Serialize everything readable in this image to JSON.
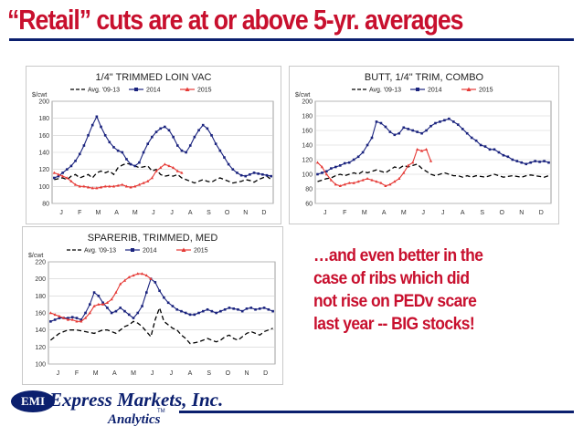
{
  "slide": {
    "title": "“Retail” cuts are at or above 5-yr. averages",
    "callout_lines": [
      "…and even better in the",
      "case of ribs which did",
      "not rise on PEDv scare",
      "last year --  BIG stocks!"
    ],
    "colors": {
      "title": "#c8102e",
      "rule": "#0b1f6e",
      "avg": "#000000",
      "s2014": "#1a237e",
      "s2015": "#e53935"
    }
  },
  "logo": {
    "badge": "EMI",
    "name": "Express Markets, Inc.",
    "sub": "Analytics",
    "tm": "TM"
  },
  "chart_data": [
    {
      "type": "line",
      "title": "1/4\" TRIMMED LOIN VAC",
      "ylabel": "$/cwt",
      "ylim": [
        80,
        200
      ],
      "yticks": [
        80,
        100,
        120,
        140,
        160,
        180,
        200
      ],
      "months": [
        "J",
        "F",
        "M",
        "A",
        "M",
        "J",
        "J",
        "A",
        "S",
        "O",
        "N",
        "D"
      ],
      "series": [
        {
          "name": "Avg. '09-13",
          "style": "dash",
          "values": [
            108,
            109,
            110,
            108,
            112,
            114,
            110,
            112,
            114,
            110,
            116,
            118,
            116,
            118,
            114,
            122,
            125,
            127,
            126,
            124,
            122,
            123,
            124,
            118,
            120,
            114,
            112,
            113,
            112,
            114,
            110,
            108,
            106,
            104,
            106,
            108,
            106,
            105,
            108,
            110,
            108,
            106,
            104,
            105,
            106,
            108,
            107,
            105,
            108,
            110,
            112,
            108
          ]
        },
        {
          "name": "2014",
          "style": "square",
          "values": [
            110,
            112,
            116,
            120,
            124,
            130,
            138,
            148,
            160,
            172,
            182,
            170,
            160,
            152,
            146,
            142,
            140,
            132,
            126,
            124,
            128,
            140,
            150,
            158,
            164,
            168,
            170,
            166,
            158,
            148,
            142,
            140,
            148,
            158,
            166,
            172,
            168,
            160,
            150,
            142,
            134,
            126,
            120,
            116,
            113,
            112,
            114,
            116,
            115,
            114,
            113,
            112
          ]
        },
        {
          "name": "2015",
          "style": "triangle",
          "values": [
            116,
            114,
            112,
            110,
            106,
            102,
            100,
            100,
            99,
            98,
            98,
            99,
            100,
            100,
            100,
            101,
            102,
            100,
            99,
            100,
            102,
            104,
            106,
            110,
            118,
            122,
            126,
            124,
            122,
            118,
            116
          ]
        }
      ],
      "legend": [
        "Avg. '09-13",
        "2014",
        "2015"
      ]
    },
    {
      "type": "line",
      "title": "BUTT, 1/4\" TRIM, COMBO",
      "ylabel": "$/cwt",
      "ylim": [
        60,
        200
      ],
      "yticks": [
        60,
        80,
        100,
        120,
        140,
        160,
        180,
        200
      ],
      "months": [
        "J",
        "F",
        "M",
        "A",
        "M",
        "J",
        "J",
        "A",
        "S",
        "O",
        "N",
        "D"
      ],
      "series": [
        {
          "name": "Avg. '09-13",
          "style": "dash",
          "values": [
            90,
            92,
            94,
            95,
            98,
            100,
            98,
            100,
            102,
            100,
            104,
            102,
            104,
            106,
            104,
            102,
            106,
            110,
            108,
            112,
            110,
            112,
            114,
            108,
            104,
            100,
            98,
            100,
            102,
            100,
            98,
            98,
            96,
            98,
            96,
            98,
            97,
            96,
            98,
            100,
            98,
            96,
            97,
            98,
            97,
            96,
            98,
            99,
            98,
            97,
            96,
            98
          ]
        },
        {
          "name": "2014",
          "style": "square",
          "values": [
            100,
            102,
            104,
            108,
            110,
            112,
            115,
            116,
            120,
            124,
            130,
            140,
            150,
            172,
            170,
            165,
            158,
            154,
            156,
            164,
            162,
            160,
            158,
            156,
            160,
            166,
            170,
            172,
            174,
            176,
            172,
            168,
            162,
            156,
            150,
            146,
            140,
            138,
            134,
            134,
            130,
            126,
            124,
            120,
            118,
            116,
            114,
            116,
            118,
            117,
            118,
            116
          ]
        },
        {
          "name": "2015",
          "style": "triangle",
          "values": [
            116,
            110,
            100,
            92,
            86,
            84,
            86,
            88,
            88,
            90,
            92,
            94,
            92,
            90,
            88,
            84,
            86,
            90,
            94,
            102,
            112,
            116,
            134,
            132,
            134,
            118
          ]
        }
      ],
      "legend": [
        "Avg. '09-13",
        "2014",
        "2015"
      ]
    },
    {
      "type": "line",
      "title": "SPARERIB, TRIMMED, MED",
      "ylabel": "$/cwt",
      "ylim": [
        100,
        220
      ],
      "yticks": [
        100,
        120,
        140,
        160,
        180,
        200,
        220
      ],
      "months": [
        "J",
        "F",
        "M",
        "A",
        "M",
        "J",
        "J",
        "A",
        "S",
        "O",
        "N",
        "D"
      ],
      "series": [
        {
          "name": "Avg. '09-13",
          "style": "dash",
          "values": [
            128,
            132,
            136,
            138,
            140,
            140,
            140,
            139,
            138,
            137,
            136,
            138,
            140,
            140,
            138,
            136,
            140,
            144,
            146,
            150,
            148,
            144,
            138,
            132,
            152,
            166,
            150,
            146,
            142,
            140,
            134,
            130,
            124,
            125,
            126,
            128,
            130,
            128,
            126,
            128,
            132,
            134,
            130,
            128,
            132,
            136,
            138,
            136,
            134,
            138,
            140,
            142
          ]
        },
        {
          "name": "2014",
          "style": "square",
          "values": [
            150,
            152,
            154,
            154,
            154,
            155,
            154,
            152,
            160,
            170,
            184,
            180,
            172,
            166,
            160,
            162,
            166,
            162,
            158,
            154,
            160,
            168,
            184,
            200,
            196,
            186,
            178,
            172,
            168,
            164,
            162,
            160,
            158,
            158,
            160,
            162,
            164,
            162,
            160,
            162,
            164,
            166,
            165,
            164,
            162,
            165,
            166,
            164,
            165,
            166,
            164,
            162
          ]
        },
        {
          "name": "2015",
          "style": "triangle",
          "values": [
            160,
            158,
            156,
            154,
            152,
            152,
            150,
            150,
            154,
            160,
            168,
            170,
            170,
            172,
            176,
            184,
            194,
            198,
            202,
            204,
            206,
            206,
            204,
            200
          ]
        }
      ],
      "legend": [
        "Avg. '09-13",
        "2014",
        "2015"
      ]
    }
  ]
}
